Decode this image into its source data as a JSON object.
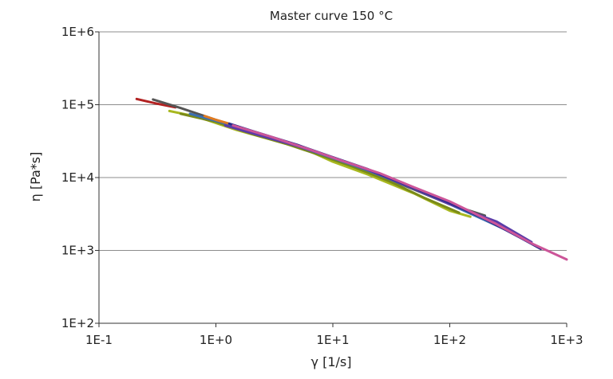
{
  "chart_data": {
    "type": "line",
    "title": "Master curve 150 °C",
    "xlabel": "γ [1/s]",
    "ylabel": "η [Pa*s]",
    "x_scale": "log",
    "y_scale": "log",
    "xlim": [
      0.1,
      1000
    ],
    "ylim": [
      100,
      1000000
    ],
    "x_ticks": [
      {
        "value": 0.1,
        "label": "1E-1"
      },
      {
        "value": 1,
        "label": "1E+0"
      },
      {
        "value": 10,
        "label": "1E+1"
      },
      {
        "value": 100,
        "label": "1E+2"
      },
      {
        "value": 1000,
        "label": "1E+3"
      }
    ],
    "y_ticks": [
      {
        "value": 100,
        "label": "1E+2"
      },
      {
        "value": 1000,
        "label": "1E+3"
      },
      {
        "value": 10000,
        "label": "1E+4"
      },
      {
        "value": 100000,
        "label": "1E+5"
      },
      {
        "value": 1000000,
        "label": "1E+6"
      }
    ],
    "grid": "horizontal",
    "series": [
      {
        "color": "#b22222",
        "x": [
          0.21,
          0.3,
          0.45
        ],
        "y": [
          120000,
          105000,
          92000
        ]
      },
      {
        "color": "#555555",
        "x": [
          0.29,
          0.5,
          1.0,
          2.0,
          5.0,
          10.0,
          20.0,
          50.0,
          100.0,
          200.0
        ],
        "y": [
          118000,
          90000,
          62000,
          42000,
          27000,
          18500,
          12500,
          6800,
          4300,
          3000
        ]
      },
      {
        "color": "#a8b820",
        "x": [
          0.4,
          0.7,
          1.5,
          3.0,
          6.0,
          10.0,
          20.0,
          50.0,
          100.0,
          150.0
        ],
        "y": [
          82000,
          68000,
          45000,
          33000,
          24000,
          16500,
          11000,
          6000,
          3500,
          2900
        ]
      },
      {
        "color": "#7a8a18",
        "x": [
          0.5,
          1.0,
          2.0,
          4.0,
          8.0,
          15.0,
          30.0,
          60.0,
          120.0
        ],
        "y": [
          75000,
          58000,
          40000,
          29000,
          20000,
          14000,
          9000,
          5300,
          3300
        ]
      },
      {
        "color": "#3a6fb0",
        "x": [
          0.6,
          1.0,
          2.0,
          5.0,
          10.0,
          20.0,
          50.0,
          100.0,
          200.0,
          400.0
        ],
        "y": [
          75000,
          60000,
          43000,
          27000,
          18500,
          12500,
          7000,
          4300,
          2600,
          1550
        ]
      },
      {
        "color": "#5a3ca8",
        "x": [
          1.2,
          2.5,
          5.0,
          10.0,
          20.0,
          50.0,
          100.0,
          250.0,
          500.0
        ],
        "y": [
          52000,
          37000,
          27000,
          19000,
          12800,
          7000,
          4300,
          2500,
          1300
        ]
      },
      {
        "color": "#e07a20",
        "x": [
          0.8,
          1.0,
          1.3
        ],
        "y": [
          70000,
          62000,
          55000
        ]
      },
      {
        "color": "#2a2a8a",
        "x": [
          1.3,
          2.0,
          5.0,
          10.0,
          20.0,
          50.0,
          100.0,
          200.0,
          400.0,
          600.0
        ],
        "y": [
          55000,
          44000,
          28000,
          19000,
          13000,
          7200,
          4500,
          2700,
          1500,
          1050
        ]
      },
      {
        "color": "#cc5599",
        "x": [
          1.4,
          3.0,
          6.0,
          12.0,
          25.0,
          50.0,
          100.0,
          250.0,
          500.0,
          1000.0
        ],
        "y": [
          52000,
          36000,
          25000,
          17000,
          11500,
          7300,
          4700,
          2300,
          1250,
          750
        ]
      }
    ]
  }
}
